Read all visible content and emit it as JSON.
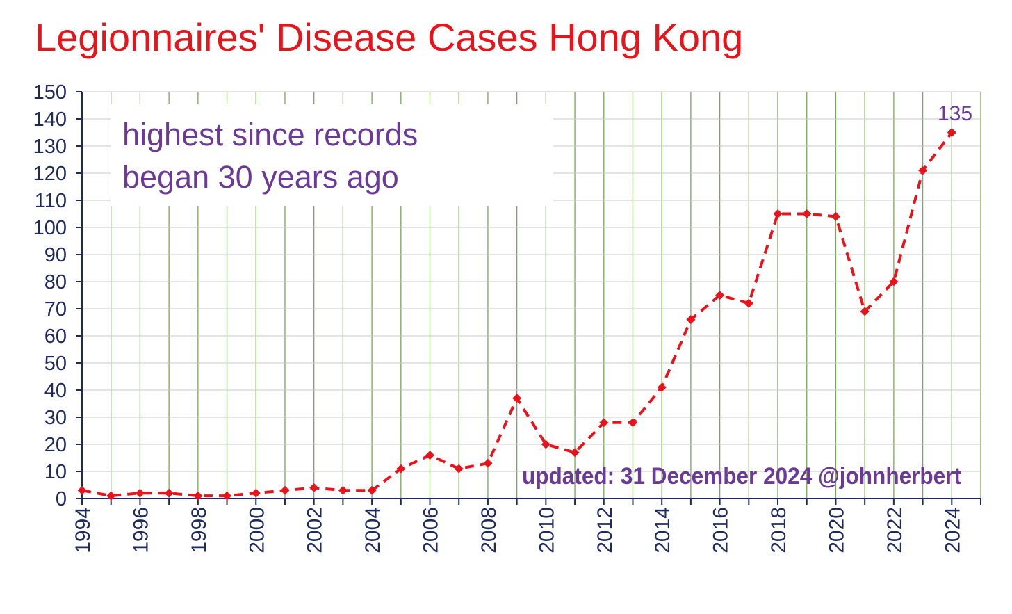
{
  "colors": {
    "title": "#e8141b",
    "series": "#e8141b",
    "annotation": "#6b3a96",
    "axis_text": "#1f2a5c",
    "vgrid": "#7ba65a",
    "hgrid": "#c8c8c8"
  },
  "chart_data": {
    "type": "line",
    "title": "Legionnaires' Disease Cases Hong Kong",
    "xlabel": "",
    "ylabel": "",
    "ylim": [
      0,
      150
    ],
    "xlim": [
      1994,
      2025
    ],
    "y_ticks": [
      0,
      10,
      20,
      30,
      40,
      50,
      60,
      70,
      80,
      90,
      100,
      110,
      120,
      130,
      140,
      150
    ],
    "x_tick_labels": [
      "1994",
      "1996",
      "1998",
      "2000",
      "2002",
      "2004",
      "2006",
      "2008",
      "2010",
      "2012",
      "2014",
      "2016",
      "2018",
      "2020",
      "2022",
      "2024"
    ],
    "grid": {
      "vertical": true,
      "horizontal": true
    },
    "line_style": "dashed",
    "marker": "diamond",
    "x": [
      1994,
      1995,
      1996,
      1997,
      1998,
      1999,
      2000,
      2001,
      2002,
      2003,
      2004,
      2005,
      2006,
      2007,
      2008,
      2009,
      2010,
      2011,
      2012,
      2013,
      2014,
      2015,
      2016,
      2017,
      2018,
      2019,
      2020,
      2021,
      2022,
      2023,
      2024
    ],
    "values": [
      3,
      1,
      2,
      2,
      1,
      1,
      2,
      3,
      4,
      3,
      3,
      11,
      16,
      11,
      13,
      37,
      20,
      17,
      28,
      28,
      41,
      66,
      75,
      72,
      105,
      105,
      104,
      69,
      80,
      121,
      135
    ],
    "annotations": {
      "note_line1": "highest since records",
      "note_line2": "began 30 years ago",
      "end_value_label": "135",
      "credit": "updated: 31 December 2024 @johnherbert"
    }
  }
}
